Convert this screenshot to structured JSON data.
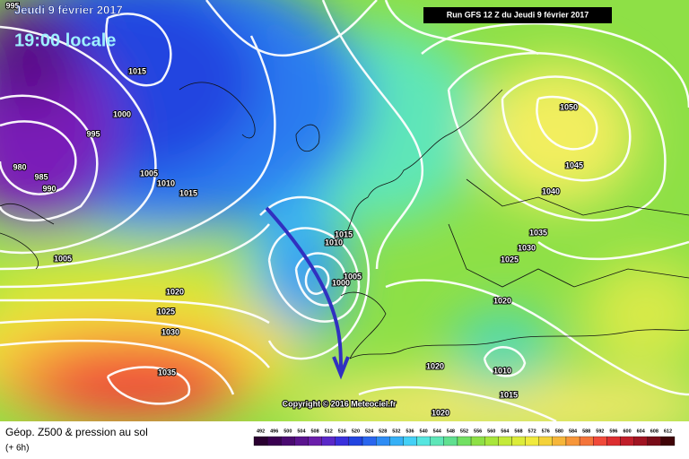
{
  "header": {
    "date": "Jeudi 9 février 2017",
    "time": "19:00 locale",
    "run": "Run GFS 12 Z du Jeudi 9 février 2017"
  },
  "isobar_labels": [
    995,
    1015,
    1000,
    995,
    980,
    985,
    990,
    1005,
    1010,
    1015,
    1005,
    1020,
    1025,
    1030,
    1035,
    1015,
    1010,
    1005,
    1000,
    1050,
    1045,
    1040,
    1035,
    1030,
    1025,
    1020,
    1020,
    1010,
    1015,
    1020
  ],
  "copyright": "Copyright © 2016 Meteociel.fr",
  "footer": {
    "title": "Géop. Z500 & pression au sol",
    "lead": "(+ 6h)"
  },
  "colorbar_labels": [
    492,
    496,
    500,
    504,
    508,
    512,
    516,
    520,
    524,
    528,
    532,
    536,
    540,
    544,
    548,
    552,
    556,
    560,
    564,
    568,
    572,
    576,
    580,
    584,
    588,
    592,
    596,
    600,
    604,
    608,
    612
  ]
}
